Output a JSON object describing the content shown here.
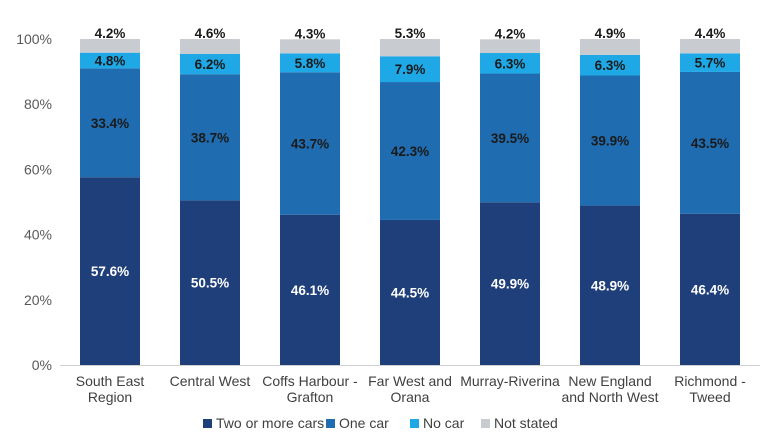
{
  "chart_data": {
    "type": "bar",
    "stacked": true,
    "title": "",
    "xlabel": "",
    "ylabel": "",
    "ylim": [
      0,
      100
    ],
    "yticks": [
      "0%",
      "20%",
      "40%",
      "60%",
      "80%",
      "100%"
    ],
    "categories": [
      [
        "South East",
        "Region"
      ],
      [
        "Central West"
      ],
      [
        "Coffs Harbour -",
        "Grafton"
      ],
      [
        "Far West and",
        "Orana"
      ],
      [
        "Murray-Riverina"
      ],
      [
        "New England",
        "and North West"
      ],
      [
        "Richmond -",
        "Tweed"
      ]
    ],
    "series": [
      {
        "name": "Two or more cars",
        "color": "#1f3f7a",
        "label_color": "#ffffff",
        "values": [
          57.6,
          50.5,
          46.1,
          44.5,
          49.9,
          48.9,
          46.4
        ],
        "labels": [
          "57.6%",
          "50.5%",
          "46.1%",
          "44.5%",
          "49.9%",
          "48.9%",
          "46.4%"
        ]
      },
      {
        "name": "One car",
        "color": "#1f6cb0",
        "label_color": "#1a1a1a",
        "values": [
          33.4,
          38.7,
          43.7,
          42.3,
          39.5,
          39.9,
          43.5
        ],
        "labels": [
          "33.4%",
          "38.7%",
          "43.7%",
          "42.3%",
          "39.5%",
          "39.9%",
          "43.5%"
        ]
      },
      {
        "name": "No car",
        "color": "#1fa8e6",
        "label_color": "#1a1a1a",
        "values": [
          4.8,
          6.2,
          5.8,
          7.9,
          6.3,
          6.3,
          5.7
        ],
        "labels": [
          "4.8%",
          "6.2%",
          "5.8%",
          "7.9%",
          "6.3%",
          "6.3%",
          "5.7%"
        ]
      },
      {
        "name": "Not stated",
        "color": "#c8ccd0",
        "label_color": "#1a1a1a",
        "values": [
          4.2,
          4.6,
          4.3,
          5.3,
          4.2,
          4.9,
          4.4
        ],
        "labels": [
          "4.2%",
          "4.6%",
          "4.3%",
          "5.3%",
          "4.2%",
          "4.9%",
          "4.4%"
        ]
      }
    ],
    "grid": false,
    "legend_position": "bottom"
  }
}
